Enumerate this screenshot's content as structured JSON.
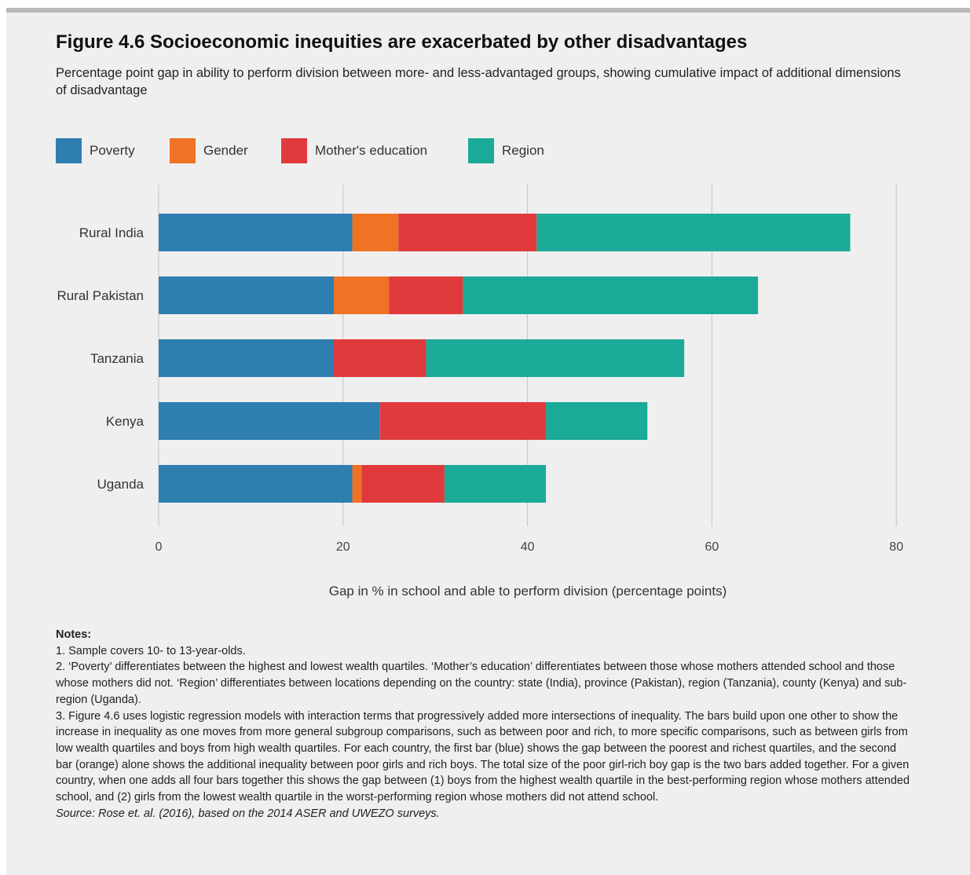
{
  "figure": {
    "title": "Figure 4.6 Socioeconomic inequities are exacerbated by other disadvantages",
    "subtitle": "Percentage point gap in ability to perform division between more- and less-advantaged groups, showing cumulative impact of additional dimensions of disadvantage"
  },
  "chart_data": {
    "type": "bar",
    "orientation": "horizontal",
    "stacked": true,
    "categories": [
      "Rural India",
      "Rural Pakistan",
      "Tanzania",
      "Kenya",
      "Uganda"
    ],
    "series": [
      {
        "name": "Poverty",
        "color": "#2e7eb0",
        "values": [
          21,
          19,
          19,
          24,
          21
        ]
      },
      {
        "name": "Gender",
        "color": "#f07225",
        "values": [
          5,
          6,
          0,
          0,
          1
        ]
      },
      {
        "name": "Mother's education",
        "color": "#e03a3c",
        "values": [
          15,
          8,
          10,
          18,
          9
        ]
      },
      {
        "name": "Region",
        "color": "#1caa98",
        "values": [
          34,
          32,
          28,
          11,
          11
        ]
      }
    ],
    "xlabel": "Gap in % in school and able to perform division (percentage points)",
    "xlim": [
      0,
      80
    ],
    "xticks": [
      0,
      20,
      40,
      60,
      80
    ],
    "grid": true,
    "legend_position": "top-left"
  },
  "notes": {
    "heading": "Notes:",
    "lines": [
      "1. Sample covers 10- to 13-year-olds.",
      "2. ‘Poverty’ differentiates between the highest and lowest wealth quartiles. ‘Mother’s education’ differentiates between those whose mothers attended school and those whose mothers did not. ‘Region’ differentiates between locations depending on the country: state (India), province (Pakistan), region (Tanzania), county (Kenya) and sub-region (Uganda).",
      "3. Figure 4.6 uses logistic regression models with interaction terms that progressively added more intersections of inequality. The bars build upon one other to show the increase in inequality as one moves from more general subgroup comparisons, such as between poor and rich, to more specific comparisons, such as between girls from low wealth quartiles and boys from high wealth quartiles. For each country, the first bar (blue) shows the gap between the poorest and richest quartiles, and the second bar (orange) alone shows the additional inequality between poor girls and rich boys. The total size of the poor girl-rich boy gap is the two bars added together. For a given country, when one adds all four bars together this shows the gap between (1) boys from the highest wealth quartile in the best-performing region whose mothers attended school, and (2) girls from the lowest wealth quartile in the worst-performing region whose mothers did not attend school."
    ],
    "source": "Source: Rose et. al. (2016), based on the 2014 ASER and UWEZO surveys."
  }
}
